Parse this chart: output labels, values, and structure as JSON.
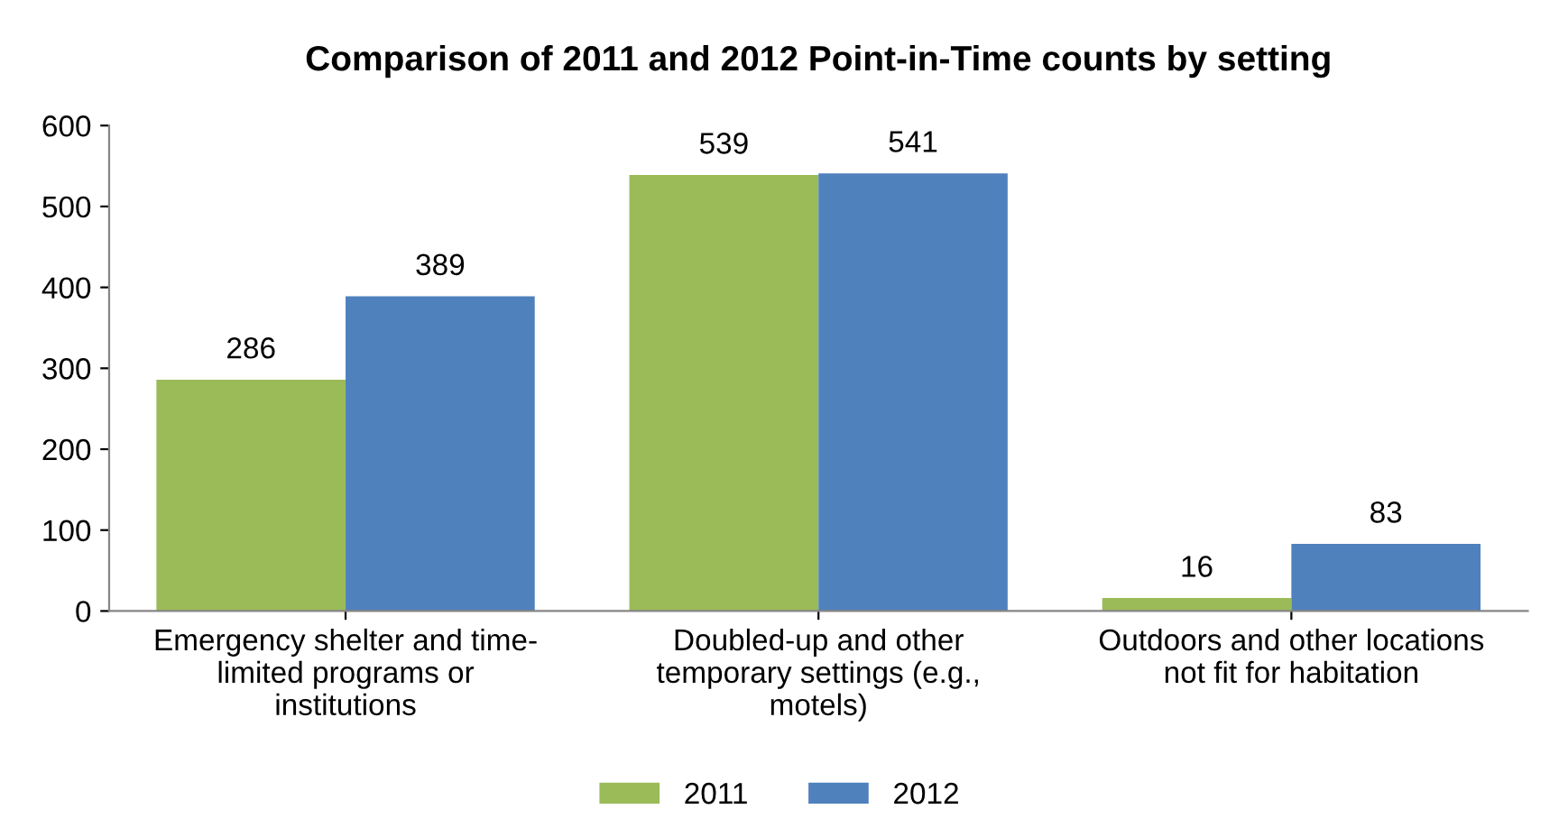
{
  "chart_data": {
    "type": "bar",
    "title": "Comparison of 2011 and 2012 Point-in-Time counts by setting",
    "categories": [
      "Emergency shelter and time-\nlimited programs or\ninstitutions",
      "Doubled-up and other\ntemporary settings (e.g.,\nmotels)",
      "Outdoors and other locations\nnot fit for habitation"
    ],
    "series": [
      {
        "name": "2011",
        "color": "#9bbb59",
        "values": [
          286,
          539,
          16
        ]
      },
      {
        "name": "2012",
        "color": "#4f81bd",
        "values": [
          389,
          541,
          83
        ]
      }
    ],
    "ylim": [
      0,
      600
    ],
    "yticks": [
      0,
      100,
      200,
      300,
      400,
      500,
      600
    ],
    "grid": false,
    "legend": "bottom",
    "data_labels": true
  }
}
